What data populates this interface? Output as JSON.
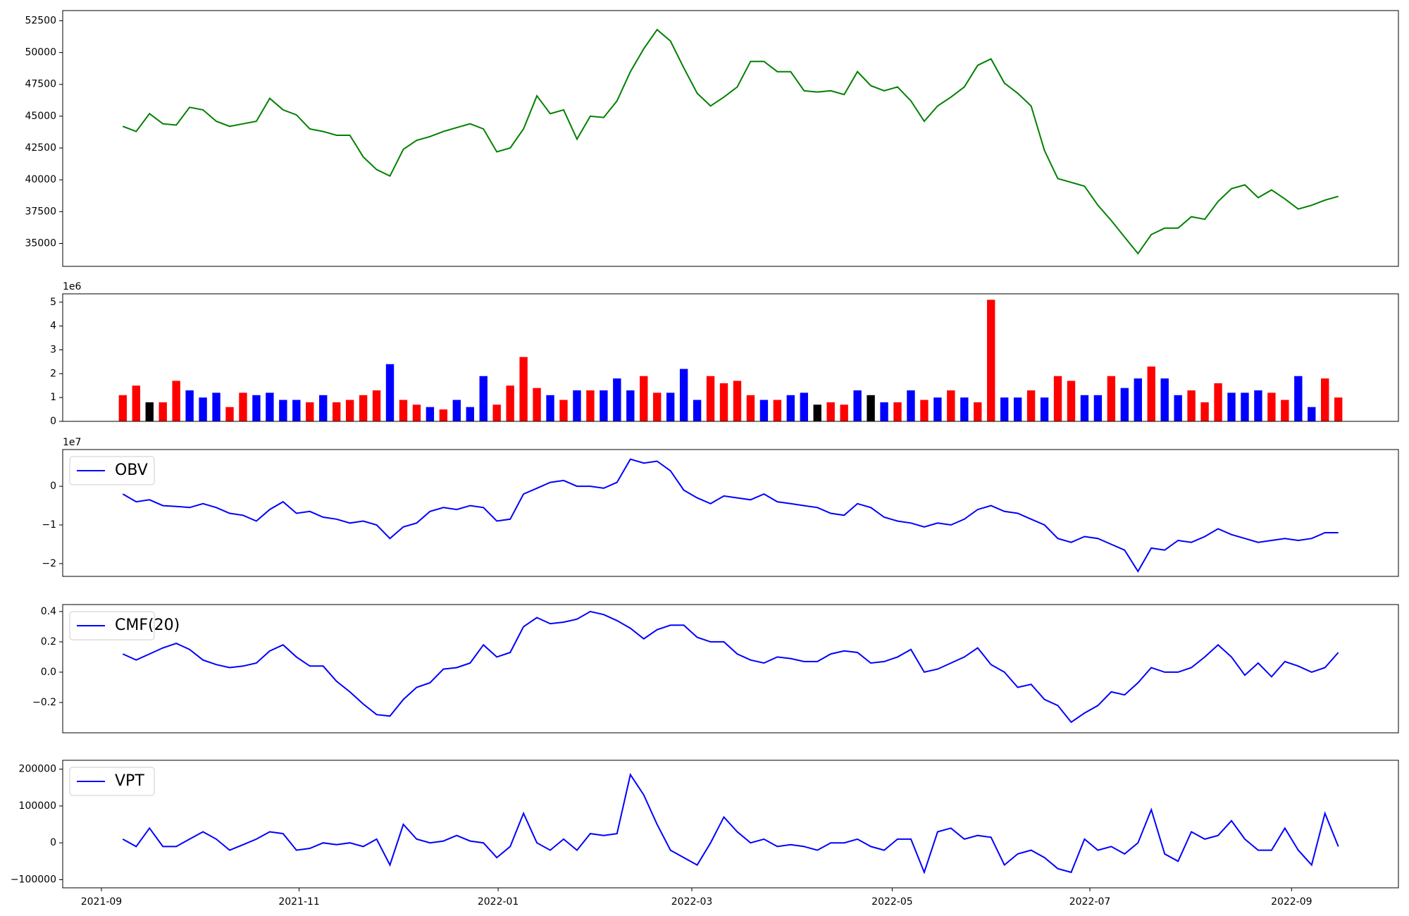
{
  "chart_data": [
    {
      "type": "line",
      "color": "green",
      "xlim": [
        -4.5,
        95.5
      ],
      "ylim": [
        33200,
        53300
      ],
      "yticks": [
        35000,
        37500,
        40000,
        42500,
        45000,
        47500,
        50000,
        52500
      ],
      "values": [
        44200,
        43800,
        45200,
        44400,
        44300,
        45700,
        45500,
        44600,
        44200,
        44400,
        44600,
        46400,
        45500,
        45100,
        44000,
        43800,
        43500,
        43500,
        41800,
        40800,
        40300,
        42400,
        43100,
        43400,
        43800,
        44100,
        44400,
        44000,
        42200,
        42500,
        44000,
        46600,
        45200,
        45500,
        43200,
        45000,
        44900,
        46200,
        48500,
        50300,
        51800,
        50900,
        48800,
        46800,
        45800,
        46500,
        47300,
        49300,
        49300,
        48500,
        48500,
        47000,
        46900,
        47000,
        46700,
        48500,
        47400,
        47000,
        47300,
        46200,
        44600,
        45800,
        46500,
        47300,
        49000,
        49500,
        47600,
        46800,
        45800,
        42300,
        40100,
        39800,
        39500,
        38000,
        36800,
        35500,
        34200,
        35700,
        36200,
        36200,
        37100,
        36900,
        38300,
        39300,
        39600,
        38600,
        39200,
        38500,
        37700,
        38000,
        38400,
        38700
      ]
    },
    {
      "type": "bar",
      "offset_label": "1e6",
      "xlim": [
        -4.5,
        95.5
      ],
      "ylim": [
        0,
        5.35
      ],
      "yticks": [
        0,
        1,
        2,
        3,
        4,
        5
      ],
      "values": [
        1.1,
        1.5,
        0.8,
        0.8,
        1.7,
        1.3,
        1.0,
        1.2,
        0.6,
        1.2,
        1.1,
        1.2,
        0.9,
        0.9,
        0.8,
        1.1,
        0.8,
        0.9,
        1.1,
        1.3,
        2.4,
        0.9,
        0.7,
        0.6,
        0.5,
        0.9,
        0.6,
        1.9,
        0.7,
        1.5,
        2.7,
        1.4,
        1.1,
        0.9,
        1.3,
        1.3,
        1.3,
        1.8,
        1.3,
        1.9,
        1.2,
        1.2,
        2.2,
        0.9,
        1.9,
        1.6,
        1.7,
        1.1,
        0.9,
        0.9,
        1.1,
        1.2,
        0.7,
        0.8,
        0.7,
        1.3,
        1.1,
        0.8,
        0.8,
        1.3,
        0.9,
        1.0,
        1.3,
        1.0,
        0.8,
        5.1,
        1.0,
        1.0,
        1.3,
        1.0,
        1.9,
        1.7,
        1.1,
        1.1,
        1.9,
        1.4,
        1.8,
        2.3,
        1.8,
        1.1,
        1.3,
        0.8,
        1.6,
        1.2,
        1.2,
        1.3,
        1.2,
        0.9,
        1.9,
        0.6,
        1.8,
        1.0
      ],
      "colors": [
        "red",
        "red",
        "black",
        "red",
        "red",
        "blue",
        "blue",
        "blue",
        "red",
        "red",
        "blue",
        "blue",
        "blue",
        "blue",
        "red",
        "blue",
        "red",
        "red",
        "red",
        "red",
        "blue",
        "red",
        "red",
        "blue",
        "red",
        "blue",
        "blue",
        "blue",
        "red",
        "red",
        "red",
        "red",
        "blue",
        "red",
        "blue",
        "red",
        "blue",
        "blue",
        "blue",
        "red",
        "red",
        "blue",
        "blue",
        "blue",
        "red",
        "red",
        "red",
        "red",
        "blue",
        "red",
        "blue",
        "blue",
        "black",
        "red",
        "red",
        "blue",
        "black",
        "blue",
        "red",
        "blue",
        "red",
        "blue",
        "red",
        "blue",
        "red",
        "red",
        "blue",
        "blue",
        "red",
        "blue",
        "red",
        "red",
        "blue",
        "blue",
        "red",
        "blue",
        "blue",
        "red",
        "blue",
        "blue",
        "red",
        "red",
        "red",
        "blue",
        "blue",
        "blue",
        "red",
        "red",
        "blue",
        "blue",
        "red",
        "red"
      ]
    },
    {
      "type": "line",
      "offset_label": "1e7",
      "legend": "upper left",
      "xlim": [
        -4.5,
        95.5
      ],
      "ylim": [
        -2.33,
        0.95
      ],
      "yticks": [
        {
          "value": -2,
          "label": "−2"
        },
        {
          "value": -1,
          "label": "−1"
        },
        0
      ],
      "series": [
        {
          "name": "OBV",
          "color": "blue",
          "values": [
            -0.2,
            -0.4,
            -0.35,
            -0.5,
            -0.52,
            -0.55,
            -0.45,
            -0.55,
            -0.7,
            -0.75,
            -0.9,
            -0.6,
            -0.4,
            -0.7,
            -0.65,
            -0.8,
            -0.85,
            -0.95,
            -0.9,
            -1.0,
            -1.35,
            -1.05,
            -0.95,
            -0.65,
            -0.55,
            -0.6,
            -0.5,
            -0.55,
            -0.9,
            -0.85,
            -0.2,
            -0.05,
            0.1,
            0.15,
            0.0,
            0.0,
            -0.05,
            0.1,
            0.7,
            0.6,
            0.65,
            0.4,
            -0.1,
            -0.3,
            -0.45,
            -0.25,
            -0.3,
            -0.35,
            -0.2,
            -0.4,
            -0.45,
            -0.5,
            -0.55,
            -0.7,
            -0.75,
            -0.45,
            -0.55,
            -0.8,
            -0.9,
            -0.95,
            -1.05,
            -0.95,
            -1.0,
            -0.85,
            -0.6,
            -0.5,
            -0.65,
            -0.7,
            -0.85,
            -1.0,
            -1.35,
            -1.45,
            -1.3,
            -1.35,
            -1.5,
            -1.65,
            -2.2,
            -1.6,
            -1.65,
            -1.4,
            -1.45,
            -1.3,
            -1.1,
            -1.25,
            -1.35,
            -1.45,
            -1.4,
            -1.35,
            -1.4,
            -1.35,
            -1.2,
            -1.2
          ]
        }
      ]
    },
    {
      "type": "line",
      "legend": "upper left",
      "xlim": [
        -4.5,
        95.5
      ],
      "ylim": [
        -0.4,
        0.446
      ],
      "yticks": [
        {
          "value": -0.2,
          "label": "−0.2"
        },
        {
          "value": 0,
          "label": "0.0"
        },
        0.2,
        0.4
      ],
      "series": [
        {
          "name": "CMF(20)",
          "color": "blue",
          "values": [
            0.12,
            0.08,
            0.12,
            0.16,
            0.19,
            0.15,
            0.08,
            0.05,
            0.03,
            0.04,
            0.06,
            0.14,
            0.18,
            0.1,
            0.04,
            0.04,
            -0.06,
            -0.13,
            -0.21,
            -0.28,
            -0.29,
            -0.18,
            -0.1,
            -0.07,
            0.02,
            0.03,
            0.06,
            0.18,
            0.1,
            0.13,
            0.3,
            0.36,
            0.32,
            0.33,
            0.35,
            0.4,
            0.38,
            0.34,
            0.29,
            0.22,
            0.28,
            0.31,
            0.31,
            0.23,
            0.2,
            0.2,
            0.12,
            0.08,
            0.06,
            0.1,
            0.09,
            0.07,
            0.07,
            0.12,
            0.14,
            0.13,
            0.06,
            0.07,
            0.1,
            0.15,
            0.0,
            0.02,
            0.06,
            0.1,
            0.16,
            0.05,
            0.0,
            -0.1,
            -0.08,
            -0.18,
            -0.22,
            -0.33,
            -0.27,
            -0.22,
            -0.13,
            -0.15,
            -0.07,
            0.03,
            0.0,
            0.0,
            0.03,
            0.1,
            0.18,
            0.1,
            -0.02,
            0.06,
            -0.03,
            0.07,
            0.04,
            0.0,
            0.03,
            0.13
          ]
        }
      ]
    },
    {
      "type": "line",
      "legend": "upper left",
      "xlim": [
        -4.5,
        95.5
      ],
      "ylim": [
        -122000,
        224000
      ],
      "yticks": [
        {
          "value": -100000,
          "label": "−100000"
        },
        0,
        100000,
        200000
      ],
      "xticks": [
        {
          "value": -1.6,
          "label": "2021-09"
        },
        {
          "value": 13.2,
          "label": "2021-11"
        },
        {
          "value": 28.1,
          "label": "2022-01"
        },
        {
          "value": 42.6,
          "label": "2022-03"
        },
        {
          "value": 57.6,
          "label": "2022-05"
        },
        {
          "value": 72.4,
          "label": "2022-07"
        },
        {
          "value": 87.5,
          "label": "2022-09"
        }
      ],
      "series": [
        {
          "name": "VPT",
          "color": "blue",
          "values": [
            10000,
            -10000,
            40000,
            -10000,
            -10000,
            10000,
            30000,
            10000,
            -20000,
            -5000,
            10000,
            30000,
            25000,
            -20000,
            -15000,
            0,
            -5000,
            0,
            -10000,
            10000,
            -60000,
            50000,
            10000,
            0,
            5000,
            20000,
            5000,
            0,
            -40000,
            -10000,
            80000,
            0,
            -20000,
            10000,
            -20000,
            25000,
            20000,
            25000,
            185000,
            130000,
            50000,
            -20000,
            -40000,
            -60000,
            0,
            70000,
            30000,
            0,
            10000,
            -10000,
            -5000,
            -10000,
            -20000,
            0,
            0,
            10000,
            -10000,
            -20000,
            10000,
            10000,
            -80000,
            30000,
            40000,
            10000,
            20000,
            15000,
            -60000,
            -30000,
            -20000,
            -40000,
            -70000,
            -80000,
            10000,
            -20000,
            -10000,
            -30000,
            0,
            90000,
            -30000,
            -50000,
            30000,
            10000,
            20000,
            60000,
            10000,
            -20000,
            -20000,
            40000,
            -20000,
            -60000,
            80000,
            -10000
          ]
        }
      ]
    }
  ]
}
